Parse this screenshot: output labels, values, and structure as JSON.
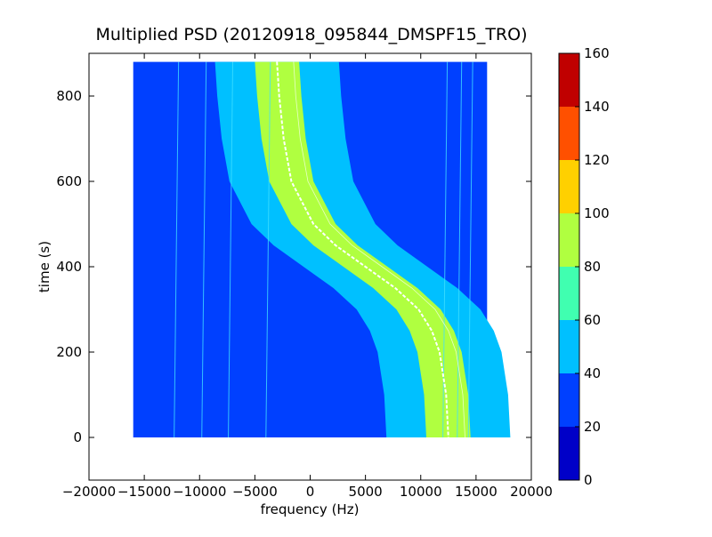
{
  "chart_data": {
    "type": "heatmap",
    "title": "Multiplied PSD (20120918_095844_DMSPF15_TRO)",
    "xlabel": "frequency (Hz)",
    "ylabel": "time (s)",
    "xlim": [
      -20000,
      20000
    ],
    "ylim": [
      -100,
      900
    ],
    "x_ticks": [
      -20000,
      -15000,
      -10000,
      -5000,
      0,
      5000,
      10000,
      15000,
      20000
    ],
    "y_ticks": [
      0,
      200,
      400,
      600,
      800
    ],
    "data_extent": {
      "x": [
        -16000,
        16000
      ],
      "y": [
        0,
        880
      ]
    },
    "colorbar": {
      "ticks": [
        0,
        20,
        40,
        60,
        80,
        100,
        120,
        140,
        160
      ],
      "colors": [
        "#0000c8",
        "#0040ff",
        "#00c0ff",
        "#40ffb0",
        "#b0ff40",
        "#ffd000",
        "#ff5000",
        "#c00000"
      ]
    },
    "background_level": 30,
    "trace": {
      "description_levels": {
        "core": 90,
        "halo": 55
      },
      "center_line": [
        {
          "t": 880,
          "f": -3000
        },
        {
          "t": 800,
          "f": -2800
        },
        {
          "t": 700,
          "f": -2400
        },
        {
          "t": 600,
          "f": -1700
        },
        {
          "t": 500,
          "f": 300
        },
        {
          "t": 450,
          "f": 2300
        },
        {
          "t": 400,
          "f": 5000
        },
        {
          "t": 350,
          "f": 7700
        },
        {
          "t": 300,
          "f": 9800
        },
        {
          "t": 250,
          "f": 11000
        },
        {
          "t": 200,
          "f": 11700
        },
        {
          "t": 100,
          "f": 12300
        },
        {
          "t": 0,
          "f": 12500
        }
      ]
    },
    "vertical_lines_hz": [
      -12300,
      -9800,
      -7400,
      -4000,
      12000,
      13300,
      14300
    ]
  }
}
